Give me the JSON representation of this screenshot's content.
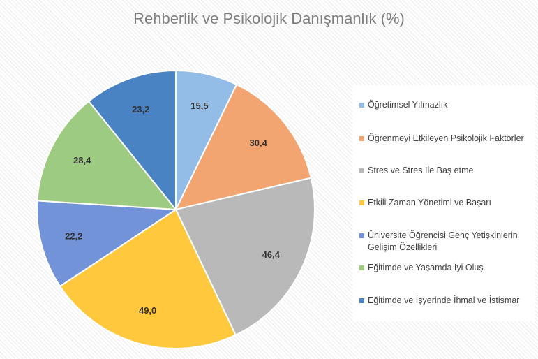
{
  "chart_data": {
    "type": "pie",
    "title": "Rehberlik ve Psikolojik Danışmanlık (%)",
    "categories": [
      "Öğretimsel Yılmazlık",
      "Öğrenmeyi Etkileyen Psikolojik Faktörler",
      "Stres ve Stres İle Baş etme",
      "Etkili Zaman Yönetimi ve Başarı",
      "Üniversite Öğrencisi Genç Yetişkinlerin Gelişim Özellikleri",
      "Eğitimde ve Yaşamda İyi Oluş",
      "Eğitimde ve İşyerinde İhmal ve İstismar"
    ],
    "values": [
      15.5,
      30.4,
      46.4,
      49.0,
      22.2,
      28.4,
      23.2
    ],
    "value_labels": [
      "15,5",
      "30,4",
      "46,4",
      "49,0",
      "22,2",
      "28,4",
      "23,2"
    ],
    "colors": [
      "#93bde6",
      "#f3a571",
      "#b9b9b9",
      "#ffc83d",
      "#7393d9",
      "#9dcb82",
      "#4a83c4"
    ],
    "legend": "right"
  }
}
